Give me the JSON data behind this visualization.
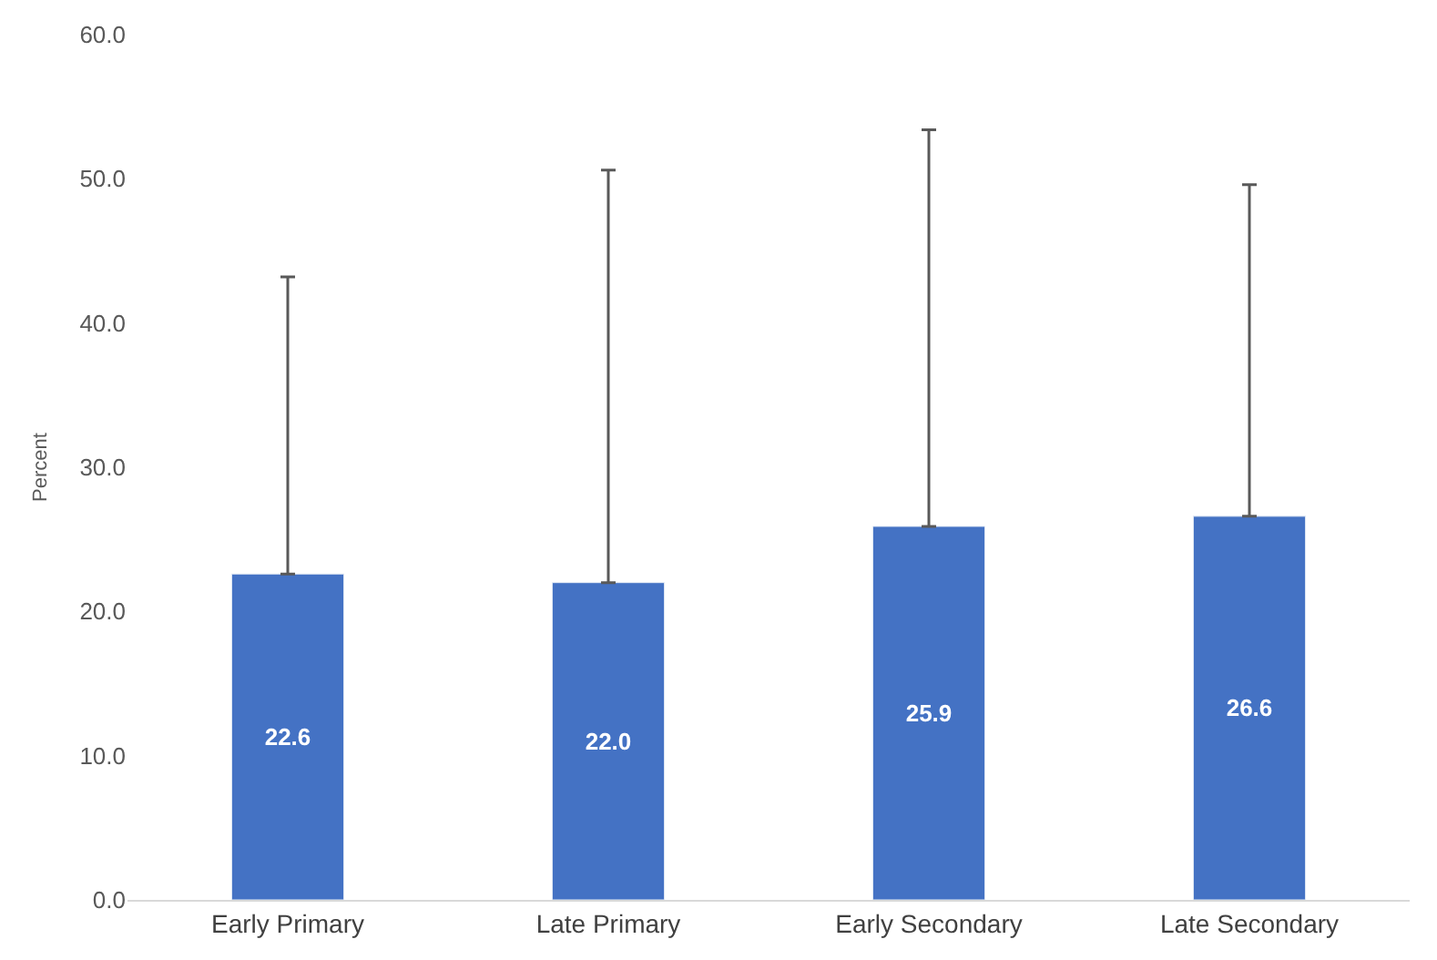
{
  "chart_data": {
    "type": "bar",
    "ylabel": "Percent",
    "categories": [
      "Early Primary",
      "Late Primary",
      "Early Secondary",
      "Late Secondary"
    ],
    "values": [
      22.6,
      22.0,
      25.9,
      26.6
    ],
    "errors": [
      [
        22.6,
        43.2
      ],
      [
        22.0,
        50.6
      ],
      [
        25.9,
        53.4
      ],
      [
        26.6,
        49.6
      ]
    ],
    "value_labels": [
      "22.6",
      "22.0",
      "25.9",
      "26.6"
    ],
    "color": "#4472c4",
    "ylim": [
      0,
      60
    ],
    "yticks": [
      {
        "value": 0,
        "label": "0.0"
      },
      {
        "value": 10,
        "label": "10.0"
      },
      {
        "value": 20,
        "label": "20.0"
      },
      {
        "value": 30,
        "label": "30.0"
      },
      {
        "value": 40,
        "label": "40.0"
      },
      {
        "value": 50,
        "label": "50.0"
      },
      {
        "value": 60,
        "label": "60.0"
      }
    ]
  }
}
